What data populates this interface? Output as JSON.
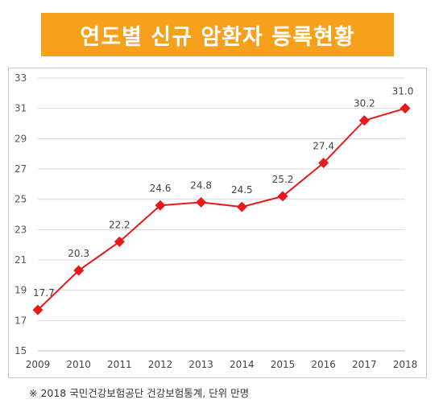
{
  "header": {
    "title": "연도별 신규 암환자 등록현황"
  },
  "footnote": "※ 2018 국민건강보험공단 건강보험통계, 단위 만명",
  "colors": {
    "banner": "#f5a11c",
    "line": "#e8191c",
    "grid": "#d9d9d9"
  },
  "chart_data": {
    "type": "line",
    "categories": [
      "2009",
      "2010",
      "2011",
      "2012",
      "2013",
      "2014",
      "2015",
      "2016",
      "2017",
      "2018"
    ],
    "series": [
      {
        "values": [
          17.7,
          20.3,
          22.2,
          24.6,
          24.8,
          24.5,
          25.2,
          27.4,
          30.2,
          31.0
        ],
        "labels": [
          "17.7",
          "20.3",
          "22.2",
          "24.6",
          "24.8",
          "24.5",
          "25.2",
          "27.4",
          "30.2",
          "31.0"
        ],
        "marker": "diamond"
      }
    ],
    "ylim": [
      15,
      33
    ],
    "yticks": [
      15,
      17,
      19,
      21,
      23,
      25,
      27,
      29,
      31,
      33
    ],
    "grid": "horizontal",
    "title": "",
    "xlabel": "",
    "ylabel": ""
  }
}
